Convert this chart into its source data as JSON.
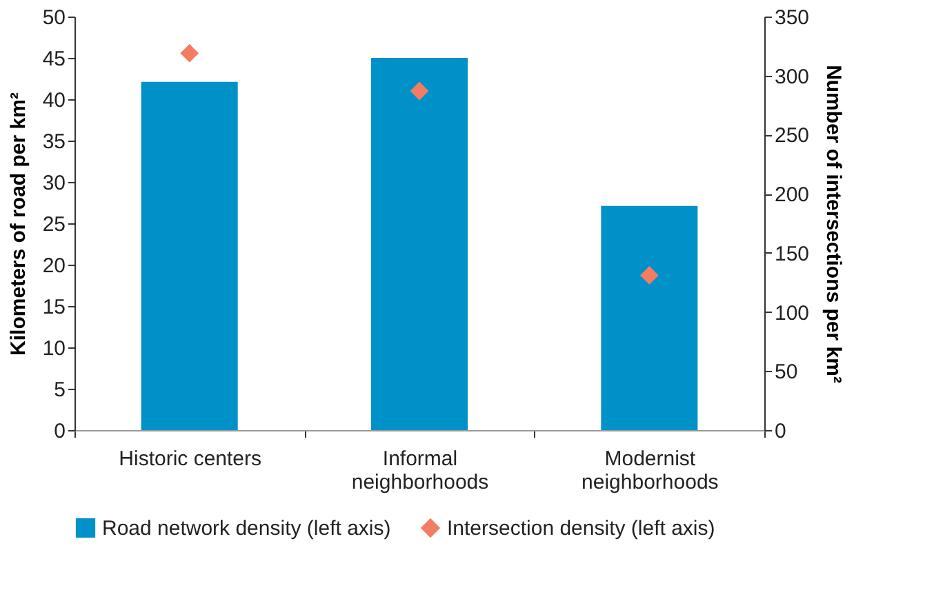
{
  "chart_data": {
    "type": "bar",
    "categories": [
      "Historic centers",
      "Informal neighborhoods",
      "Modernist neighborhoods"
    ],
    "series": [
      {
        "name": "Road network density (left axis)",
        "color": "#0091c8",
        "values": [
          42.1,
          45,
          27.1
        ]
      },
      {
        "name": "Intersection density (left axis)",
        "type": "scatter",
        "axis": "y2",
        "marker": "diamond",
        "color": "#f47c62",
        "values": [
          319,
          287,
          131
        ]
      }
    ],
    "ylabel": "Kilometers of road per km²",
    "y2label": "Number of intersections per km²",
    "ylim": [
      0,
      50
    ],
    "yticks": [
      0,
      5,
      10,
      15,
      20,
      25,
      30,
      35,
      40,
      45,
      50
    ],
    "y2lim": [
      0,
      350
    ],
    "y2ticks": [
      0,
      50,
      100,
      150,
      200,
      250,
      300,
      350
    ],
    "grid": false,
    "legend": "bottom"
  }
}
